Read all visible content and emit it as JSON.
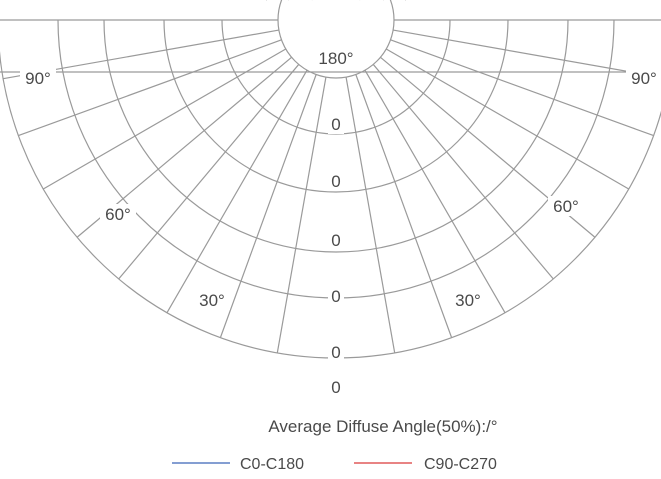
{
  "chart_data": {
    "type": "polar",
    "angle_labels": [
      {
        "text": "90°",
        "angle": -90
      },
      {
        "text": "90°",
        "angle": 90
      },
      {
        "text": "60°",
        "angle": -60
      },
      {
        "text": "60°",
        "angle": 60
      },
      {
        "text": "30°",
        "angle": -30
      },
      {
        "text": "30°",
        "angle": 30
      },
      {
        "text": "180°",
        "angle": 180
      }
    ],
    "radial_labels": [
      "0",
      "0",
      "0",
      "0",
      "0",
      "0"
    ],
    "caption": "Average Diffuse Angle(50%):/°",
    "series": [
      {
        "name": "C0-C180",
        "color": "#5b7fc4"
      },
      {
        "name": "C90-C270",
        "color": "#e05a5a"
      }
    ],
    "grid": true,
    "legend_position": "bottom"
  }
}
